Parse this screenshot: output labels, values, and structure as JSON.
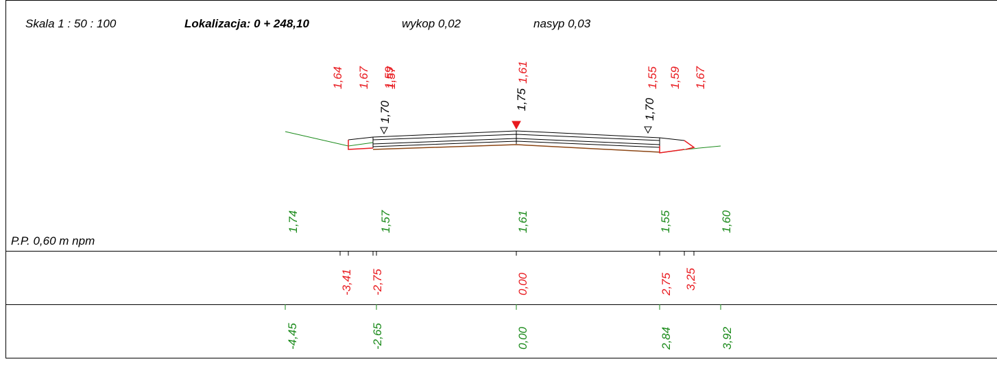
{
  "header": {
    "scale": "Skala 1 : 50 : 100",
    "location_label": "Lokalizacja:  0 + 248,10",
    "wykop": "wykop 0,02",
    "nasyp": "nasyp 0,03"
  },
  "reference_level": "P.P. 0,60 m npm",
  "design_heights": [
    "1,64",
    "1,67",
    "1,59",
    "1,57",
    "1,61",
    "1,55",
    "1,59",
    "1,67"
  ],
  "road_edge_heights": [
    "1,70",
    "1,75",
    "1,70"
  ],
  "terrain_heights": [
    "1,74",
    "1,57",
    "1,61",
    "1,55",
    "1,60"
  ],
  "design_offsets": [
    "-3,41",
    "-2,75",
    "0,00",
    "2,75",
    "3,25"
  ],
  "terrain_offsets": [
    "-4,45",
    "-2,65",
    "0,00",
    "2,84",
    "3,92"
  ],
  "colors": {
    "design": "#e8191e",
    "terrain": "#1a8a1a",
    "structure": "#000000",
    "subgrade": "#8b4513"
  }
}
